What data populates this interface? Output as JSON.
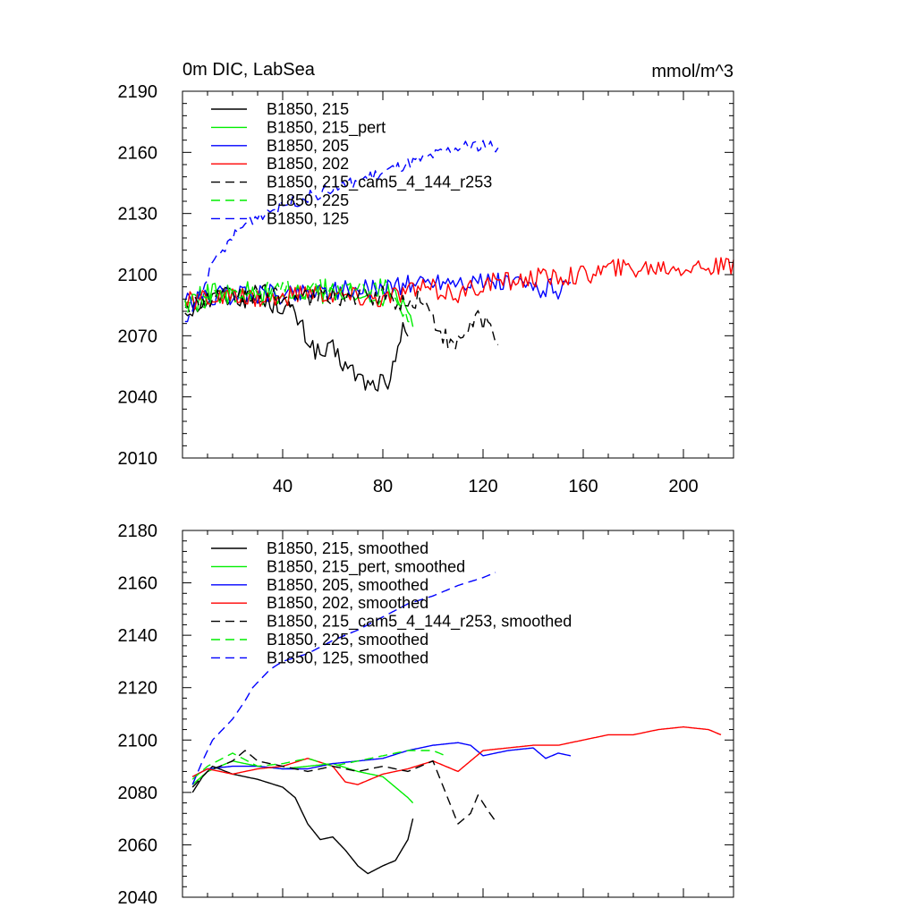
{
  "figure": {
    "title_left": "0m DIC, LabSea",
    "title_right": "mmol/m^3"
  },
  "chart_data": [
    {
      "type": "line",
      "title": "0m DIC, LabSea",
      "units": "mmol/m^3",
      "xlim": [
        0,
        220
      ],
      "ylim": [
        2010,
        2190
      ],
      "x_ticks": [
        40,
        80,
        120,
        160,
        200
      ],
      "x_tick_labels": [
        "40",
        "80",
        "120",
        "160",
        "200"
      ],
      "y_ticks": [
        2010,
        2040,
        2070,
        2100,
        2130,
        2160,
        2190
      ],
      "y_tick_labels": [
        "2010",
        "2040",
        "2070",
        "2100",
        "2130",
        "2160",
        "2190"
      ],
      "legend": "top-left",
      "series": [
        {
          "name": "B1850, 215",
          "color": "#000000",
          "dash": false,
          "noise": 5,
          "points": [
            [
              1,
              2082
            ],
            [
              10,
              2088
            ],
            [
              20,
              2090
            ],
            [
              30,
              2087
            ],
            [
              40,
              2085
            ],
            [
              45,
              2080
            ],
            [
              50,
              2068
            ],
            [
              55,
              2060
            ],
            [
              60,
              2063
            ],
            [
              65,
              2055
            ],
            [
              70,
              2050
            ],
            [
              75,
              2045
            ],
            [
              80,
              2048
            ],
            [
              82,
              2040
            ],
            [
              85,
              2060
            ],
            [
              88,
              2078
            ],
            [
              90,
              2070
            ]
          ]
        },
        {
          "name": "B1850, 215_pert",
          "color": "#00ee00",
          "dash": false,
          "noise": 6,
          "points": [
            [
              1,
              2085
            ],
            [
              10,
              2090
            ],
            [
              20,
              2092
            ],
            [
              30,
              2090
            ],
            [
              40,
              2088
            ],
            [
              50,
              2090
            ],
            [
              60,
              2093
            ],
            [
              70,
              2088
            ],
            [
              80,
              2090
            ],
            [
              85,
              2093
            ],
            [
              90,
              2085
            ],
            [
              92,
              2078
            ]
          ]
        },
        {
          "name": "B1850, 205",
          "color": "#0000ff",
          "dash": false,
          "noise": 5,
          "points": [
            [
              1,
              2086
            ],
            [
              10,
              2089
            ],
            [
              20,
              2090
            ],
            [
              30,
              2091
            ],
            [
              40,
              2090
            ],
            [
              50,
              2092
            ],
            [
              60,
              2093
            ],
            [
              70,
              2092
            ],
            [
              80,
              2094
            ],
            [
              90,
              2095
            ],
            [
              100,
              2097
            ],
            [
              110,
              2097
            ],
            [
              120,
              2096
            ],
            [
              130,
              2096
            ],
            [
              140,
              2094
            ],
            [
              150,
              2093
            ],
            [
              155,
              2093
            ]
          ]
        },
        {
          "name": "B1850, 202",
          "color": "#ff0000",
          "dash": false,
          "noise": 5,
          "points": [
            [
              1,
              2086
            ],
            [
              10,
              2089
            ],
            [
              20,
              2088
            ],
            [
              30,
              2089
            ],
            [
              40,
              2088
            ],
            [
              50,
              2092
            ],
            [
              60,
              2090
            ],
            [
              70,
              2089
            ],
            [
              80,
              2088
            ],
            [
              90,
              2092
            ],
            [
              100,
              2093
            ],
            [
              110,
              2090
            ],
            [
              120,
              2095
            ],
            [
              130,
              2097
            ],
            [
              140,
              2098
            ],
            [
              150,
              2099
            ],
            [
              160,
              2100
            ],
            [
              170,
              2103
            ],
            [
              180,
              2103
            ],
            [
              190,
              2104
            ],
            [
              200,
              2104
            ],
            [
              210,
              2104
            ],
            [
              220,
              2103
            ]
          ]
        },
        {
          "name": "B1850, 215_cam5_4_144_r253",
          "color": "#000000",
          "dash": true,
          "noise": 5,
          "points": [
            [
              1,
              2082
            ],
            [
              10,
              2088
            ],
            [
              20,
              2090
            ],
            [
              30,
              2091
            ],
            [
              40,
              2089
            ],
            [
              50,
              2088
            ],
            [
              60,
              2090
            ],
            [
              70,
              2089
            ],
            [
              80,
              2090
            ],
            [
              90,
              2085
            ],
            [
              95,
              2090
            ],
            [
              100,
              2078
            ],
            [
              108,
              2063
            ],
            [
              112,
              2070
            ],
            [
              118,
              2080
            ],
            [
              122,
              2075
            ],
            [
              126,
              2068
            ]
          ]
        },
        {
          "name": "B1850, 225",
          "color": "#00ee00",
          "dash": true,
          "noise": 5,
          "points": [
            [
              1,
              2085
            ],
            [
              10,
              2090
            ],
            [
              20,
              2092
            ],
            [
              30,
              2091
            ],
            [
              40,
              2092
            ],
            [
              50,
              2093
            ],
            [
              60,
              2092
            ],
            [
              70,
              2094
            ],
            [
              80,
              2093
            ],
            [
              85,
              2091
            ],
            [
              90,
              2080
            ],
            [
              92,
              2075
            ]
          ]
        },
        {
          "name": "B1850, 125",
          "color": "#0000ff",
          "dash": true,
          "noise": 3,
          "points": [
            [
              1,
              2075
            ],
            [
              5,
              2085
            ],
            [
              10,
              2100
            ],
            [
              15,
              2110
            ],
            [
              20,
              2118
            ],
            [
              25,
              2125
            ],
            [
              30,
              2129
            ],
            [
              40,
              2134
            ],
            [
              50,
              2138
            ],
            [
              60,
              2142
            ],
            [
              70,
              2146
            ],
            [
              80,
              2150
            ],
            [
              90,
              2154
            ],
            [
              100,
              2158
            ],
            [
              110,
              2162
            ],
            [
              120,
              2164
            ],
            [
              126,
              2162
            ]
          ]
        }
      ]
    },
    {
      "type": "line",
      "xlim": [
        0,
        220
      ],
      "ylim": [
        2040,
        2180
      ],
      "x_ticks": [
        40,
        80,
        120,
        160,
        200
      ],
      "y_ticks": [
        2040,
        2060,
        2080,
        2100,
        2120,
        2140,
        2160,
        2180
      ],
      "y_tick_labels": [
        "2040",
        "2060",
        "2080",
        "2100",
        "2120",
        "2140",
        "2160",
        "2180"
      ],
      "legend": "top-left",
      "series": [
        {
          "name": "B1850, 215, smoothed",
          "color": "#000000",
          "dash": false,
          "noise": 0,
          "points": [
            [
              4,
              2080
            ],
            [
              8,
              2086
            ],
            [
              12,
              2090
            ],
            [
              20,
              2087
            ],
            [
              30,
              2085
            ],
            [
              40,
              2082
            ],
            [
              45,
              2078
            ],
            [
              50,
              2068
            ],
            [
              55,
              2062
            ],
            [
              60,
              2063
            ],
            [
              65,
              2058
            ],
            [
              70,
              2052
            ],
            [
              74,
              2049
            ],
            [
              80,
              2052
            ],
            [
              85,
              2054
            ],
            [
              90,
              2062
            ],
            [
              92,
              2070
            ]
          ]
        },
        {
          "name": "B1850, 215_pert, smoothed",
          "color": "#00ee00",
          "dash": false,
          "noise": 0,
          "points": [
            [
              4,
              2083
            ],
            [
              10,
              2088
            ],
            [
              20,
              2092
            ],
            [
              30,
              2090
            ],
            [
              40,
              2089
            ],
            [
              50,
              2090
            ],
            [
              60,
              2091
            ],
            [
              70,
              2088
            ],
            [
              80,
              2086
            ],
            [
              85,
              2082
            ],
            [
              90,
              2078
            ],
            [
              92,
              2076
            ]
          ]
        },
        {
          "name": "B1850, 205, smoothed",
          "color": "#0000ff",
          "dash": false,
          "noise": 0,
          "points": [
            [
              4,
              2086
            ],
            [
              10,
              2089
            ],
            [
              20,
              2090
            ],
            [
              30,
              2090
            ],
            [
              40,
              2089
            ],
            [
              50,
              2089
            ],
            [
              60,
              2091
            ],
            [
              70,
              2092
            ],
            [
              80,
              2093
            ],
            [
              90,
              2096
            ],
            [
              100,
              2098
            ],
            [
              110,
              2099
            ],
            [
              115,
              2098
            ],
            [
              120,
              2094
            ],
            [
              130,
              2096
            ],
            [
              140,
              2097
            ],
            [
              145,
              2093
            ],
            [
              150,
              2095
            ],
            [
              155,
              2094
            ]
          ]
        },
        {
          "name": "B1850, 202, smoothed",
          "color": "#ff0000",
          "dash": false,
          "noise": 0,
          "points": [
            [
              4,
              2086
            ],
            [
              10,
              2089
            ],
            [
              20,
              2087
            ],
            [
              30,
              2089
            ],
            [
              40,
              2090
            ],
            [
              50,
              2093
            ],
            [
              60,
              2090
            ],
            [
              65,
              2084
            ],
            [
              70,
              2083
            ],
            [
              80,
              2087
            ],
            [
              90,
              2089
            ],
            [
              100,
              2092
            ],
            [
              110,
              2088
            ],
            [
              120,
              2096
            ],
            [
              130,
              2097
            ],
            [
              140,
              2098
            ],
            [
              150,
              2098
            ],
            [
              160,
              2100
            ],
            [
              170,
              2102
            ],
            [
              180,
              2102
            ],
            [
              190,
              2104
            ],
            [
              200,
              2105
            ],
            [
              210,
              2104
            ],
            [
              215,
              2102
            ]
          ]
        },
        {
          "name": "B1850, 215_cam5_4_144_r253, smoothed",
          "color": "#000000",
          "dash": true,
          "noise": 0,
          "points": [
            [
              4,
              2082
            ],
            [
              10,
              2088
            ],
            [
              20,
              2092
            ],
            [
              25,
              2096
            ],
            [
              30,
              2092
            ],
            [
              40,
              2090
            ],
            [
              50,
              2088
            ],
            [
              60,
              2090
            ],
            [
              70,
              2088
            ],
            [
              80,
              2090
            ],
            [
              90,
              2088
            ],
            [
              100,
              2092
            ],
            [
              105,
              2080
            ],
            [
              110,
              2068
            ],
            [
              115,
              2072
            ],
            [
              118,
              2079
            ],
            [
              122,
              2073
            ],
            [
              125,
              2069
            ]
          ]
        },
        {
          "name": "B1850, 225, smoothed",
          "color": "#00ee00",
          "dash": true,
          "noise": 0,
          "points": [
            [
              4,
              2085
            ],
            [
              10,
              2090
            ],
            [
              20,
              2095
            ],
            [
              30,
              2090
            ],
            [
              40,
              2091
            ],
            [
              50,
              2093
            ],
            [
              60,
              2090
            ],
            [
              70,
              2092
            ],
            [
              80,
              2094
            ],
            [
              90,
              2096
            ],
            [
              100,
              2096
            ],
            [
              105,
              2094
            ]
          ]
        },
        {
          "name": "B1850, 125, smoothed",
          "color": "#0000ff",
          "dash": true,
          "noise": 0,
          "points": [
            [
              4,
              2083
            ],
            [
              8,
              2092
            ],
            [
              12,
              2100
            ],
            [
              20,
              2108
            ],
            [
              25,
              2115
            ],
            [
              28,
              2120
            ],
            [
              35,
              2127
            ],
            [
              40,
              2130
            ],
            [
              50,
              2133
            ],
            [
              60,
              2138
            ],
            [
              70,
              2142
            ],
            [
              80,
              2147
            ],
            [
              90,
              2152
            ],
            [
              100,
              2155
            ],
            [
              110,
              2159
            ],
            [
              120,
              2162
            ],
            [
              125,
              2164
            ]
          ]
        }
      ]
    }
  ]
}
